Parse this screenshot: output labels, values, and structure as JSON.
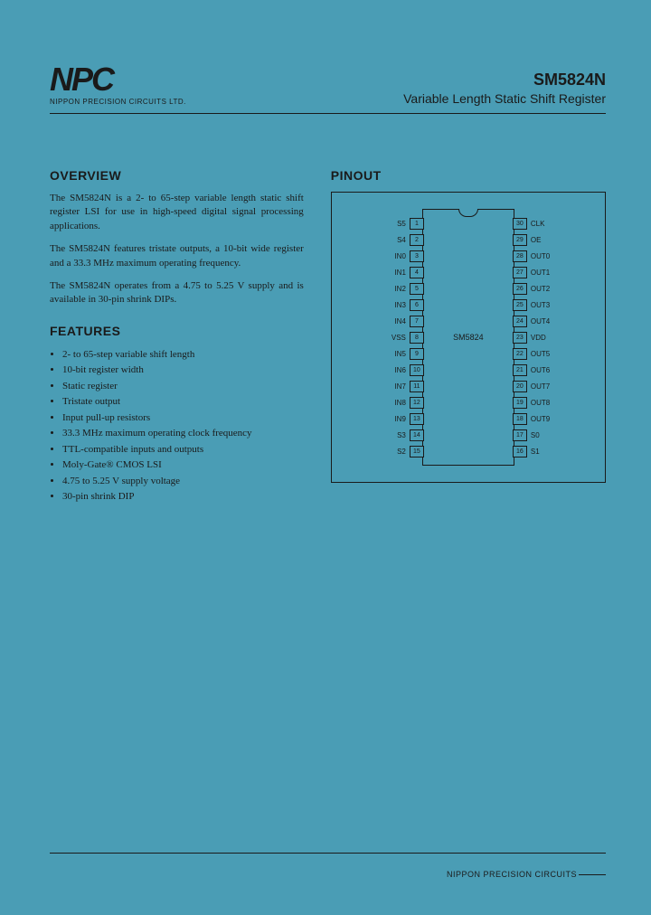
{
  "logo": {
    "text": "NPC",
    "sub": "NIPPON PRECISION CIRCUITS LTD."
  },
  "title": {
    "part": "SM5824N",
    "desc": "Variable Length Static Shift Register"
  },
  "overview": {
    "heading": "OVERVIEW",
    "p1": "The SM5824N is a 2- to 65-step variable length static shift register LSI for use in high-speed digital signal processing applications.",
    "p2": "The SM5824N features tristate outputs, a 10-bit wide register and a 33.3 MHz maximum operating frequency.",
    "p3": "The SM5824N operates from a 4.75 to 5.25 V supply and is available in 30-pin shrink DIPs."
  },
  "features": {
    "heading": "FEATURES",
    "items": [
      "2- to 65-step variable shift length",
      "10-bit register width",
      "Static register",
      "Tristate output",
      "Input pull-up resistors",
      "33.3 MHz maximum operating clock frequency",
      "TTL-compatible inputs and outputs",
      "Moly-Gate® CMOS LSI",
      "4.75 to 5.25 V supply voltage",
      "30-pin shrink DIP"
    ]
  },
  "pinout": {
    "heading": "PINOUT",
    "chip_label": "SM5824",
    "left": [
      {
        "n": "1",
        "l": "S5"
      },
      {
        "n": "2",
        "l": "S4"
      },
      {
        "n": "3",
        "l": "IN0"
      },
      {
        "n": "4",
        "l": "IN1"
      },
      {
        "n": "5",
        "l": "IN2"
      },
      {
        "n": "6",
        "l": "IN3"
      },
      {
        "n": "7",
        "l": "IN4"
      },
      {
        "n": "8",
        "l": "VSS"
      },
      {
        "n": "9",
        "l": "IN5"
      },
      {
        "n": "10",
        "l": "IN6"
      },
      {
        "n": "11",
        "l": "IN7"
      },
      {
        "n": "12",
        "l": "IN8"
      },
      {
        "n": "13",
        "l": "IN9"
      },
      {
        "n": "14",
        "l": "S3"
      },
      {
        "n": "15",
        "l": "S2"
      }
    ],
    "right": [
      {
        "n": "30",
        "l": "CLK"
      },
      {
        "n": "29",
        "l": "OE"
      },
      {
        "n": "28",
        "l": "OUT0"
      },
      {
        "n": "27",
        "l": "OUT1"
      },
      {
        "n": "26",
        "l": "OUT2"
      },
      {
        "n": "25",
        "l": "OUT3"
      },
      {
        "n": "24",
        "l": "OUT4"
      },
      {
        "n": "23",
        "l": "VDD"
      },
      {
        "n": "22",
        "l": "OUT5"
      },
      {
        "n": "21",
        "l": "OUT6"
      },
      {
        "n": "20",
        "l": "OUT7"
      },
      {
        "n": "19",
        "l": "OUT8"
      },
      {
        "n": "18",
        "l": "OUT9"
      },
      {
        "n": "17",
        "l": "S0"
      },
      {
        "n": "16",
        "l": "S1"
      }
    ]
  },
  "footer": "NIPPON PRECISION CIRCUITS"
}
